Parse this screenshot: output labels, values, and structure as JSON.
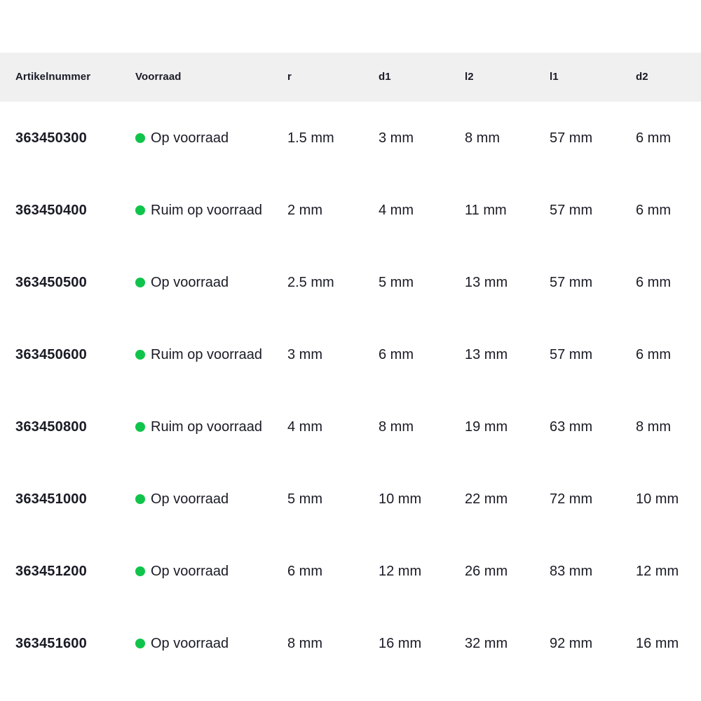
{
  "table": {
    "columns": [
      {
        "key": "artikelnummer",
        "label": "Artikelnummer"
      },
      {
        "key": "voorraad",
        "label": "Voorraad"
      },
      {
        "key": "r",
        "label": "r"
      },
      {
        "key": "d1",
        "label": "d1"
      },
      {
        "key": "l2",
        "label": "l2"
      },
      {
        "key": "l1",
        "label": "l1"
      },
      {
        "key": "d2",
        "label": "d2"
      }
    ],
    "rows": [
      {
        "artikelnummer": "363450300",
        "voorraad": "Op voorraad",
        "r": "1.5 mm",
        "d1": "3 mm",
        "l2": "8 mm",
        "l1": "57 mm",
        "d2": "6 mm"
      },
      {
        "artikelnummer": "363450400",
        "voorraad": "Ruim op voorraad",
        "r": "2 mm",
        "d1": "4 mm",
        "l2": "11 mm",
        "l1": "57 mm",
        "d2": "6 mm"
      },
      {
        "artikelnummer": "363450500",
        "voorraad": "Op voorraad",
        "r": "2.5 mm",
        "d1": "5 mm",
        "l2": "13 mm",
        "l1": "57 mm",
        "d2": "6 mm"
      },
      {
        "artikelnummer": "363450600",
        "voorraad": "Ruim op voorraad",
        "r": "3 mm",
        "d1": "6 mm",
        "l2": "13 mm",
        "l1": "57 mm",
        "d2": "6 mm"
      },
      {
        "artikelnummer": "363450800",
        "voorraad": "Ruim op voorraad",
        "r": "4 mm",
        "d1": "8 mm",
        "l2": "19 mm",
        "l1": "63 mm",
        "d2": "8 mm"
      },
      {
        "artikelnummer": "363451000",
        "voorraad": "Op voorraad",
        "r": "5 mm",
        "d1": "10 mm",
        "l2": "22 mm",
        "l1": "72 mm",
        "d2": "10 mm"
      },
      {
        "artikelnummer": "363451200",
        "voorraad": "Op voorraad",
        "r": "6 mm",
        "d1": "12 mm",
        "l2": "26 mm",
        "l1": "83 mm",
        "d2": "12 mm"
      },
      {
        "artikelnummer": "363451600",
        "voorraad": "Op voorraad",
        "r": "8 mm",
        "d1": "16 mm",
        "l2": "32 mm",
        "l1": "92 mm",
        "d2": "16 mm"
      }
    ],
    "colors": {
      "header_bg": "#f0f0f1",
      "text": "#1b1b26",
      "stock_dot_in_stock": "#10c44b"
    }
  }
}
